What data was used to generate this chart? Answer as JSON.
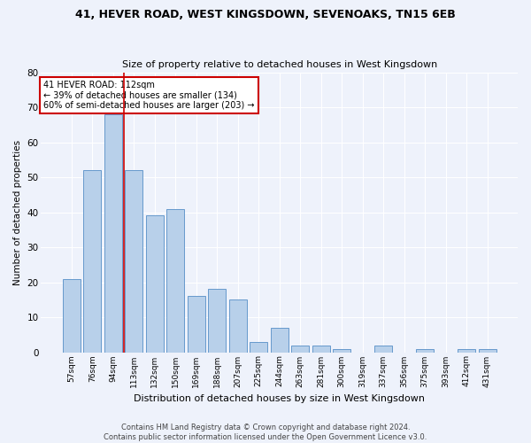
{
  "title1": "41, HEVER ROAD, WEST KINGSDOWN, SEVENOAKS, TN15 6EB",
  "title2": "Size of property relative to detached houses in West Kingsdown",
  "xlabel": "Distribution of detached houses by size in West Kingsdown",
  "ylabel": "Number of detached properties",
  "categories": [
    "57sqm",
    "76sqm",
    "94sqm",
    "113sqm",
    "132sqm",
    "150sqm",
    "169sqm",
    "188sqm",
    "207sqm",
    "225sqm",
    "244sqm",
    "263sqm",
    "281sqm",
    "300sqm",
    "319sqm",
    "337sqm",
    "356sqm",
    "375sqm",
    "393sqm",
    "412sqm",
    "431sqm"
  ],
  "values": [
    21,
    52,
    68,
    52,
    39,
    41,
    16,
    18,
    15,
    3,
    7,
    2,
    2,
    1,
    0,
    2,
    0,
    1,
    0,
    1,
    1
  ],
  "bar_color": "#b8d0ea",
  "bar_edge_color": "#6699cc",
  "red_line_x": 2.5,
  "ylim": [
    0,
    80
  ],
  "yticks": [
    0,
    10,
    20,
    30,
    40,
    50,
    60,
    70,
    80
  ],
  "annotation_title": "41 HEVER ROAD: 112sqm",
  "annotation_line1": "← 39% of detached houses are smaller (134)",
  "annotation_line2": "60% of semi-detached houses are larger (203) →",
  "annotation_box_color": "#ffffff",
  "annotation_box_edge": "#cc0000",
  "footer1": "Contains HM Land Registry data © Crown copyright and database right 2024.",
  "footer2": "Contains public sector information licensed under the Open Government Licence v3.0.",
  "bg_color": "#eef2fb",
  "plot_bg_color": "#eef2fb",
  "grid_color": "#ffffff"
}
